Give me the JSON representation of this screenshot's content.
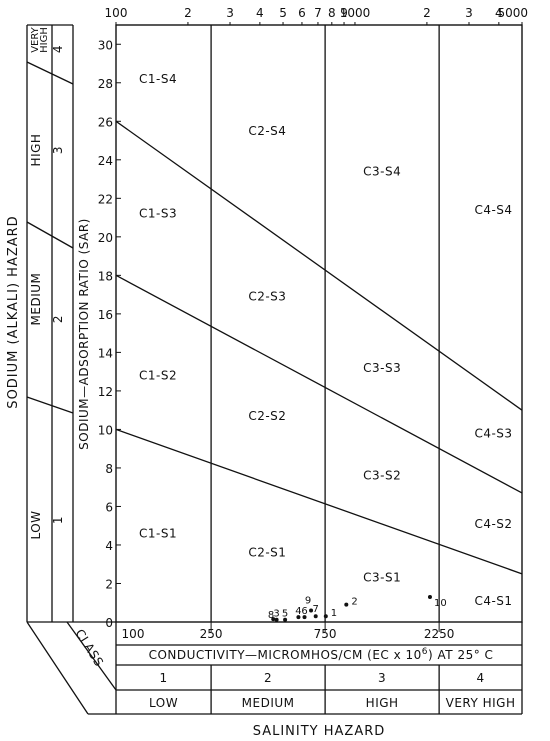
{
  "chart_data": {
    "type": "diagram-chart",
    "title": "",
    "top_axis": {
      "scale": "log",
      "range": [
        100,
        5000
      ],
      "tick_labels": [
        {
          "value": 100,
          "text": "100"
        },
        {
          "value": 200,
          "text": "2"
        },
        {
          "value": 300,
          "text": "3"
        },
        {
          "value": 400,
          "text": "4"
        },
        {
          "value": 500,
          "text": "5"
        },
        {
          "value": 600,
          "text": "6"
        },
        {
          "value": 700,
          "text": "7"
        },
        {
          "value": 800,
          "text": "8"
        },
        {
          "value": 900,
          "text": "9"
        },
        {
          "value": 1000,
          "text": "1000"
        },
        {
          "value": 2000,
          "text": "2"
        },
        {
          "value": 3000,
          "text": "3"
        },
        {
          "value": 4000,
          "text": "4"
        },
        {
          "value": 5000,
          "text": "5000"
        }
      ]
    },
    "bottom_axis": {
      "tick_labels": [
        {
          "value": 100,
          "text": "100"
        },
        {
          "value": 250,
          "text": "250"
        },
        {
          "value": 750,
          "text": "750"
        },
        {
          "value": 2250,
          "text": "2250"
        }
      ],
      "label": "CONDUCTIVITY—MICROMHOS/CM   (EC x 10",
      "label_sup": "6",
      "label_tail": ") AT 25° C"
    },
    "y_axis": {
      "label": "SODIUM—ADSORPTION  RATIO  (SAR)",
      "range": [
        0,
        31
      ],
      "ticks": [
        0,
        2,
        4,
        6,
        8,
        10,
        12,
        14,
        16,
        18,
        20,
        22,
        24,
        26,
        28,
        30
      ]
    },
    "salinity_boundaries": [
      250,
      750,
      2250
    ],
    "sodium_boundaries": [
      {
        "ec_start": 100,
        "sar_start": 10,
        "ec_end": 5000,
        "sar_end": 2.5
      },
      {
        "ec_start": 100,
        "sar_start": 18,
        "ec_end": 5000,
        "sar_end": 6.7
      },
      {
        "ec_start": 100,
        "sar_start": 26,
        "ec_end": 5000,
        "sar_end": 11
      }
    ],
    "regions": [
      {
        "text": "C1-S4",
        "ec": 150,
        "sar": 28.2
      },
      {
        "text": "C1-S3",
        "ec": 150,
        "sar": 21.2
      },
      {
        "text": "C1-S2",
        "ec": 150,
        "sar": 12.8
      },
      {
        "text": "C1-S1",
        "ec": 150,
        "sar": 4.6
      },
      {
        "text": "C2-S4",
        "ec": 430,
        "sar": 25.5
      },
      {
        "text": "C2-S3",
        "ec": 430,
        "sar": 16.9
      },
      {
        "text": "C2-S2",
        "ec": 430,
        "sar": 10.7
      },
      {
        "text": "C2-S1",
        "ec": 430,
        "sar": 3.6
      },
      {
        "text": "C3-S4",
        "ec": 1300,
        "sar": 23.4
      },
      {
        "text": "C3-S3",
        "ec": 1300,
        "sar": 13.2
      },
      {
        "text": "C3-S2",
        "ec": 1300,
        "sar": 7.6
      },
      {
        "text": "C3-S1",
        "ec": 1300,
        "sar": 2.3
      },
      {
        "text": "C4-S4",
        "ec": 3800,
        "sar": 21.4
      },
      {
        "text": "C4-S3",
        "ec": 3800,
        "sar": 9.8
      },
      {
        "text": "C4-S2",
        "ec": 3800,
        "sar": 5.1
      },
      {
        "text": "C4-S1",
        "ec": 3800,
        "sar": 1.1
      }
    ],
    "samples": [
      {
        "label": "1",
        "ec": 755,
        "sar": 0.3
      },
      {
        "label": "2",
        "ec": 920,
        "sar": 0.9
      },
      {
        "label": "3",
        "ec": 470,
        "sar": 0.12
      },
      {
        "label": "4",
        "ec": 580,
        "sar": 0.25
      },
      {
        "label": "5",
        "ec": 510,
        "sar": 0.12
      },
      {
        "label": "6",
        "ec": 615,
        "sar": 0.25
      },
      {
        "label": "7",
        "ec": 685,
        "sar": 0.3
      },
      {
        "label": "8",
        "ec": 455,
        "sar": 0.15
      },
      {
        "label": "9",
        "ec": 655,
        "sar": 0.6
      },
      {
        "label": "10",
        "ec": 2060,
        "sar": 1.3
      }
    ],
    "salinity_classes": [
      {
        "number": "1",
        "name": "LOW",
        "from": 100,
        "to": 250
      },
      {
        "number": "2",
        "name": "MEDIUM",
        "from": 250,
        "to": 750
      },
      {
        "number": "3",
        "name": "HIGH",
        "from": 750,
        "to": 2250
      },
      {
        "number": "4",
        "name": "VERY HIGH",
        "from": 2250,
        "to": 5000
      }
    ],
    "sodium_classes": [
      {
        "number": "1",
        "name": "LOW"
      },
      {
        "number": "2",
        "name": "MEDIUM"
      },
      {
        "number": "3",
        "name": "HIGH"
      },
      {
        "number": "4",
        "name": "VERY HIGH"
      }
    ],
    "class_label": "CLASS",
    "salinity_hazard_label": "SALINITY  HAZARD",
    "sodium_hazard_label": "SODIUM  (ALKALI)  HAZARD"
  }
}
